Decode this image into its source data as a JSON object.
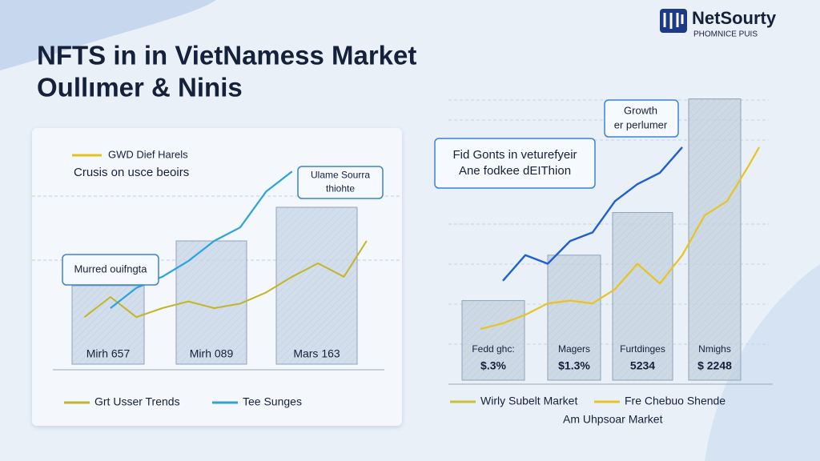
{
  "header": {
    "title_lines": [
      "NFTS in in VietNamess Market",
      "Oullımer & Ninis"
    ],
    "logo_name": "NetSourty",
    "logo_sub": "PHOMNICE PUIS"
  },
  "chart_data": [
    {
      "type": "bar-line",
      "categories": [
        "Mirh 657",
        "Mirh 089",
        "Mars 163"
      ],
      "values": [
        35,
        55,
        70
      ],
      "bar_color": "#c7d6e6",
      "ylim": [
        0,
        100
      ],
      "xlim": [
        0,
        100
      ],
      "x": [
        10,
        18,
        26,
        34,
        42,
        50,
        58,
        66,
        74,
        82,
        90,
        97
      ],
      "series": [
        {
          "name": "Grt Usser Trends",
          "color": "#c4b526",
          "values": [
            21,
            30,
            21,
            25,
            28,
            25,
            27,
            32,
            39,
            45,
            39,
            55
          ]
        },
        {
          "name": "Tee Sunges",
          "color": "#2ba3dc",
          "values": [
            null,
            25,
            34,
            39,
            46,
            55,
            61,
            77,
            86,
            null,
            null,
            null
          ]
        }
      ],
      "annotations": [
        {
          "lines": [
            "GWD Dief Harels"
          ]
        },
        {
          "lines": [
            "Crusis on usce beoirs"
          ]
        },
        {
          "lines": [
            "Ulame Sourra",
            "thiohte"
          ]
        },
        {
          "lines": [
            "Murred ouifngta"
          ]
        }
      ]
    },
    {
      "type": "bar-line",
      "categories": [
        "Fedd ghc:",
        "Magers",
        "Furtdinges",
        "Nmighs"
      ],
      "bar_sublabels": [
        "$.3%",
        "$1.3%",
        "5234",
        "$ 2248"
      ],
      "values": [
        28,
        44,
        59,
        99
      ],
      "bar_color": "#c3d1df",
      "ylim": [
        0,
        100
      ],
      "xlim": [
        0,
        100
      ],
      "x": [
        10,
        17,
        24,
        31,
        38,
        45,
        52,
        59,
        66,
        73,
        80,
        87,
        94,
        97
      ],
      "series": [
        {
          "color": "#e8c323",
          "values": [
            18,
            20,
            23,
            27,
            28,
            27,
            32,
            41,
            34,
            44,
            58,
            63,
            76,
            82
          ]
        },
        {
          "color": "#1f5fd2",
          "values": [
            null,
            35,
            44,
            41,
            49,
            52,
            63,
            69,
            73,
            82,
            null,
            null,
            null,
            null
          ]
        }
      ],
      "legend": [
        {
          "label": "Wirly Subelt Market",
          "color": "#c9c234"
        },
        {
          "label": "Fre Chebuo Shende",
          "color": "#e8c323"
        }
      ],
      "legend_note": "Am Uhpsoar Market",
      "annotations": [
        {
          "lines": [
            "Growth",
            "er perlumer"
          ]
        },
        {
          "lines": [
            "Fid Gonts in veturefyeir",
            "Ane fodkee dEIThion"
          ]
        }
      ]
    }
  ]
}
